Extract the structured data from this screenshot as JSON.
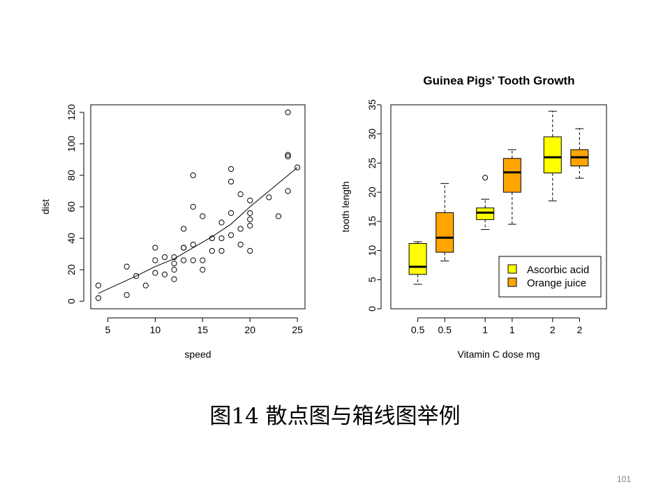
{
  "slide": {
    "caption": "图14  散点图与箱线图举例",
    "page_number": "101"
  },
  "colors": {
    "ascorbic": "#ffff00",
    "orange": "#ffa500",
    "ink": "#000000",
    "page_number": "#7f7f7f"
  },
  "chart_data": [
    {
      "type": "scatter",
      "title": "",
      "xlabel": "speed",
      "ylabel": "dist",
      "xlim": [
        3.2,
        25.8
      ],
      "ylim": [
        -4.8,
        124.8
      ],
      "xticks": [
        5,
        10,
        15,
        20,
        25
      ],
      "yticks": [
        0,
        20,
        40,
        60,
        80,
        100,
        120
      ],
      "grid": false,
      "points": [
        [
          4,
          2
        ],
        [
          4,
          10
        ],
        [
          7,
          4
        ],
        [
          7,
          22
        ],
        [
          8,
          16
        ],
        [
          9,
          10
        ],
        [
          10,
          18
        ],
        [
          10,
          26
        ],
        [
          10,
          34
        ],
        [
          11,
          17
        ],
        [
          11,
          28
        ],
        [
          12,
          14
        ],
        [
          12,
          20
        ],
        [
          12,
          24
        ],
        [
          12,
          28
        ],
        [
          13,
          26
        ],
        [
          13,
          34
        ],
        [
          13,
          34
        ],
        [
          13,
          46
        ],
        [
          14,
          26
        ],
        [
          14,
          36
        ],
        [
          14,
          60
        ],
        [
          14,
          80
        ],
        [
          15,
          20
        ],
        [
          15,
          26
        ],
        [
          15,
          54
        ],
        [
          16,
          32
        ],
        [
          16,
          40
        ],
        [
          17,
          32
        ],
        [
          17,
          40
        ],
        [
          17,
          50
        ],
        [
          18,
          42
        ],
        [
          18,
          56
        ],
        [
          18,
          76
        ],
        [
          18,
          84
        ],
        [
          19,
          36
        ],
        [
          19,
          46
        ],
        [
          19,
          68
        ],
        [
          20,
          32
        ],
        [
          20,
          48
        ],
        [
          20,
          52
        ],
        [
          20,
          56
        ],
        [
          20,
          64
        ],
        [
          22,
          66
        ],
        [
          23,
          54
        ],
        [
          24,
          70
        ],
        [
          24,
          92
        ],
        [
          24,
          93
        ],
        [
          24,
          120
        ],
        [
          25,
          85
        ]
      ],
      "smooth_line": [
        [
          4,
          5
        ],
        [
          8,
          16
        ],
        [
          10,
          22
        ],
        [
          12,
          27
        ],
        [
          14,
          34
        ],
        [
          16,
          41
        ],
        [
          18,
          49
        ],
        [
          20,
          60
        ],
        [
          22,
          70
        ],
        [
          25,
          85
        ]
      ]
    },
    {
      "type": "box",
      "title": "Guinea Pigs' Tooth Growth",
      "xlabel": "Vitamin C dose mg",
      "ylabel": "tooth length",
      "ylim": [
        0,
        35
      ],
      "yticks": [
        0,
        5,
        10,
        15,
        20,
        25,
        30,
        35
      ],
      "grid": false,
      "legend": {
        "position": "bottom-right",
        "items": [
          {
            "label": "Ascorbic acid",
            "color": "#ffff00"
          },
          {
            "label": "Orange juice",
            "color": "#ffa500"
          }
        ]
      },
      "boxes": [
        {
          "label": "0.5",
          "group": "Ascorbic acid",
          "color": "#ffff00",
          "pos": 1.0,
          "min": 4.2,
          "q1": 5.9,
          "median": 7.2,
          "q3": 11.2,
          "max": 11.5,
          "outliers": []
        },
        {
          "label": "0.5",
          "group": "Orange juice",
          "color": "#ffa500",
          "pos": 2.0,
          "min": 8.2,
          "q1": 9.7,
          "median": 12.2,
          "q3": 16.5,
          "max": 21.5,
          "outliers": []
        },
        {
          "label": "1",
          "group": "Ascorbic acid",
          "color": "#ffff00",
          "pos": 3.5,
          "min": 13.6,
          "q1": 15.3,
          "median": 16.5,
          "q3": 17.3,
          "max": 18.8,
          "outliers": [
            22.5
          ]
        },
        {
          "label": "1",
          "group": "Orange juice",
          "color": "#ffa500",
          "pos": 4.5,
          "min": 14.5,
          "q1": 20.0,
          "median": 23.4,
          "q3": 25.8,
          "max": 27.3,
          "outliers": []
        },
        {
          "label": "2",
          "group": "Ascorbic acid",
          "color": "#ffff00",
          "pos": 6.0,
          "min": 18.5,
          "q1": 23.3,
          "median": 26.0,
          "q3": 29.5,
          "max": 33.9,
          "outliers": []
        },
        {
          "label": "2",
          "group": "Orange juice",
          "color": "#ffa500",
          "pos": 7.0,
          "min": 22.4,
          "q1": 24.5,
          "median": 26.0,
          "q3": 27.3,
          "max": 30.9,
          "outliers": []
        }
      ]
    }
  ]
}
